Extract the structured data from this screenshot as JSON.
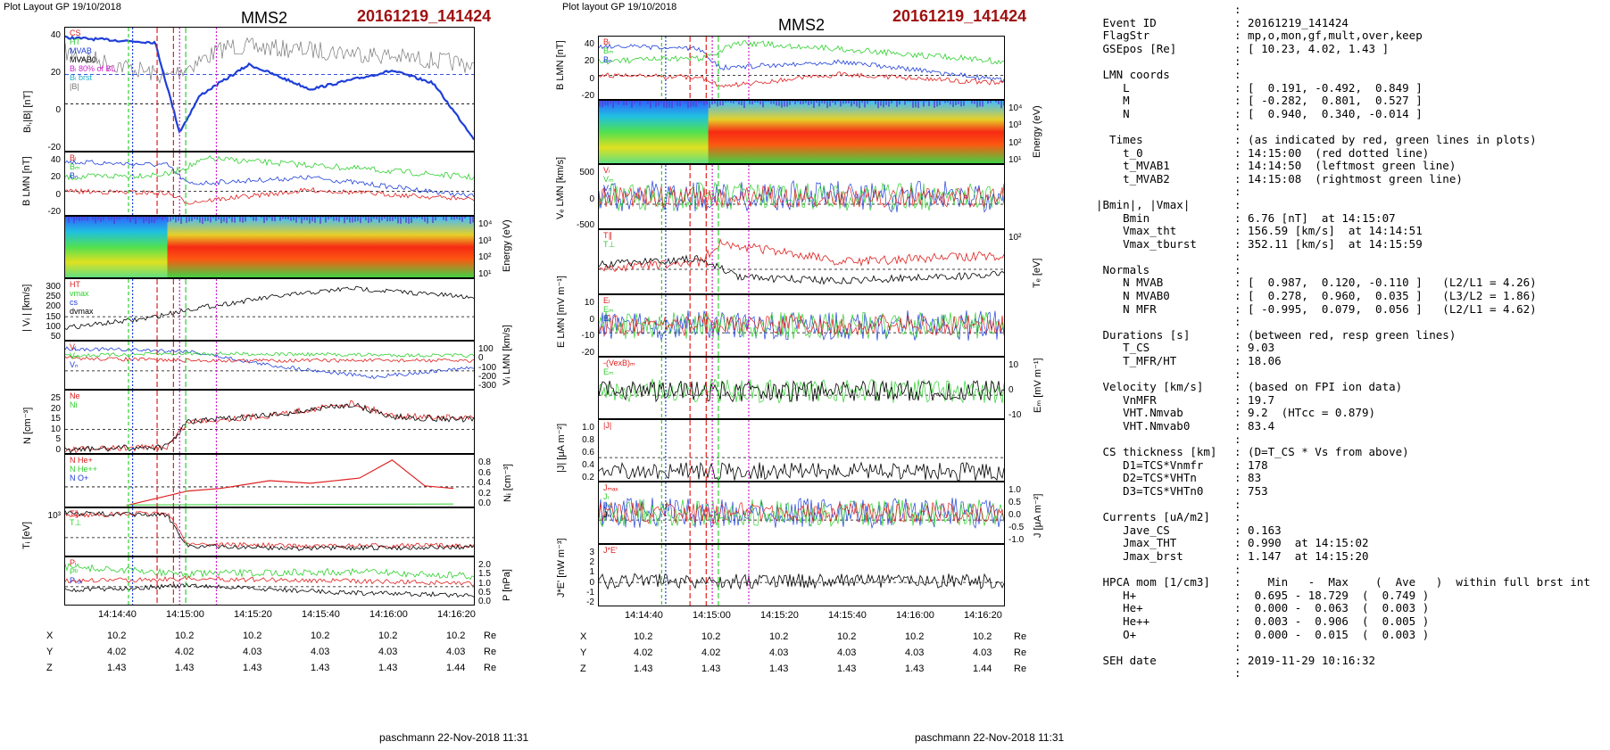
{
  "left": {
    "plot_label": "Plot Layout GP 19/10/2018",
    "spacecraft": "MMS2",
    "event": "20161219_141424",
    "footer": "paschmann 22-Nov-2018 11:31",
    "time_ticks": [
      "14:14:40",
      "14:15:00",
      "14:15:20",
      "14:15:40",
      "14:16:00",
      "14:16:20"
    ],
    "pos_rows": [
      {
        "label": "X",
        "values": [
          "10.2",
          "10.2",
          "10.2",
          "10.2",
          "10.2",
          "10.2"
        ],
        "unit": "Re"
      },
      {
        "label": "Y",
        "values": [
          "4.02",
          "4.02",
          "4.03",
          "4.03",
          "4.03",
          "4.03"
        ],
        "unit": "Re"
      },
      {
        "label": "Z",
        "values": [
          "1.43",
          "1.43",
          "1.43",
          "1.43",
          "1.43",
          "1.44"
        ],
        "unit": "Re"
      }
    ],
    "panels": [
      {
        "ylabel": "Bₗ,|B| [nT]",
        "yticks": [
          "40",
          "20",
          "0",
          "-20"
        ],
        "legend": [
          "CS",
          "HT",
          "MVAB",
          "MVAB0",
          "Bₗ 80% of BL",
          "Bₗ brst",
          "|B|"
        ]
      },
      {
        "ylabel": "B LMN [nT]",
        "yticks": [
          "40",
          "20",
          "0",
          "-20"
        ],
        "legend": [
          "Bₗ",
          "Bₘ",
          "Bₙ"
        ]
      },
      {
        "ylabel": "",
        "yticks_right": [
          "10⁴",
          "10³",
          "10²",
          "10¹"
        ],
        "ylabel_right": "Energy (eV)"
      },
      {
        "ylabel": "| Vᵢ | [km/s]",
        "yticks": [
          "300",
          "250",
          "200",
          "150",
          "100",
          "50"
        ],
        "legend": [
          "HT",
          "vmax",
          "cs",
          "dvmax"
        ]
      },
      {
        "ylabel": "",
        "yticks_right": [
          "100",
          "0",
          "-100",
          "-200",
          "-300"
        ],
        "ylabel_right": "Vᵢ LMN [km/s]",
        "legend": [
          "Vₗ",
          "Vₘ",
          "Vₙ"
        ]
      },
      {
        "ylabel": "N [cm⁻³]",
        "yticks": [
          "25",
          "20",
          "15",
          "10",
          "5",
          "0"
        ],
        "legend": [
          "Ne",
          "Ni"
        ]
      },
      {
        "ylabel": "",
        "yticks_right": [
          "0.8",
          "0.6",
          "0.4",
          "0.2",
          "0.0"
        ],
        "ylabel_right": "Nᵢ [cm⁻³]",
        "legend": [
          "N  He+",
          "N  He++",
          "N  O+"
        ]
      },
      {
        "ylabel": "Tᵢ [eV]",
        "yticks": [
          "10³"
        ],
        "legend": [
          "T∥",
          "T⊥"
        ]
      },
      {
        "ylabel": "",
        "yticks_right": [
          "2.0",
          "1.5",
          "1.0",
          "0.5",
          "0.0"
        ],
        "ylabel_right": "P [nPa]",
        "legend": [
          "Pᵢ",
          "Pᵇ",
          "Pₜₒₜ"
        ]
      }
    ]
  },
  "middle": {
    "plot_label": "Plot layout GP 19/10/2018",
    "spacecraft": "MMS2",
    "event": "20161219_141424",
    "footer": "paschmann 22-Nov-2018 11:31",
    "time_ticks": [
      "14:14:40",
      "14:15:00",
      "14:15:20",
      "14:15:40",
      "14:16:00",
      "14:16:20"
    ],
    "pos_rows": [
      {
        "label": "X",
        "values": [
          "10.2",
          "10.2",
          "10.2",
          "10.2",
          "10.2",
          "10.2"
        ],
        "unit": "Re"
      },
      {
        "label": "Y",
        "values": [
          "4.02",
          "4.02",
          "4.03",
          "4.03",
          "4.03",
          "4.03"
        ],
        "unit": "Re"
      },
      {
        "label": "Z",
        "values": [
          "1.43",
          "1.43",
          "1.43",
          "1.43",
          "1.43",
          "1.44"
        ],
        "unit": "Re"
      }
    ],
    "panels": [
      {
        "ylabel": "B LMN [nT]",
        "yticks": [
          "40",
          "20",
          "0",
          "-20"
        ],
        "legend": [
          "Bₗ",
          "Bₘ",
          "Bₙ"
        ]
      },
      {
        "ylabel": "",
        "yticks_right": [
          "10⁴",
          "10³",
          "10²",
          "10¹"
        ],
        "ylabel_right": "Energy (eV)"
      },
      {
        "ylabel": "Vₑ LMN [km/s]",
        "yticks": [
          "500",
          "0",
          "-500"
        ],
        "legend": [
          "Vₗ",
          "Vₘ",
          "Vₙ"
        ]
      },
      {
        "ylabel": "",
        "yticks_right": [
          "10²"
        ],
        "ylabel_right": "Tₑ [eV]",
        "legend": [
          "T∥",
          "T⊥"
        ]
      },
      {
        "ylabel": "E LMN [mV m⁻¹]",
        "yticks": [
          "10",
          "0",
          "-10",
          "-20"
        ],
        "legend": [
          "Eₗ",
          "Eₘ",
          "Eₙ"
        ]
      },
      {
        "ylabel": "",
        "yticks_right": [
          "10",
          "0",
          "-10"
        ],
        "ylabel_right": "Eₘ [mV m⁻¹]",
        "legend": [
          "-(VexB)ₘ",
          "Eₘ"
        ]
      },
      {
        "ylabel": "|J| [μA m⁻²]",
        "yticks": [
          "1.0",
          "0.8",
          "0.6",
          "0.4",
          "0.2"
        ],
        "legend": [
          "|J|"
        ]
      },
      {
        "ylabel": "",
        "yticks_right": [
          "1.0",
          "0.5",
          "0.0",
          "-0.5",
          "-1.0"
        ],
        "ylabel_right": "J [μA m⁻²]",
        "legend": [
          "Jₘₐₓ",
          "Jₗ",
          "Jₘ",
          "Jₙ"
        ]
      },
      {
        "ylabel": "J*E' [nW m⁻³]",
        "yticks": [
          "3",
          "2",
          "1",
          "0",
          "-1",
          "-2"
        ],
        "legend": [
          "J*E'"
        ]
      }
    ]
  },
  "info_rows": [
    {
      "k": "",
      "v": ":"
    },
    {
      "k": " Event ID",
      "v": ": 20161219_141424"
    },
    {
      "k": " FlagStr",
      "v": ": mp,o,mon,gf,mult,over,keep"
    },
    {
      "k": " GSEpos [Re]",
      "v": ": [ 10.23, 4.02, 1.43 ]"
    },
    {
      "k": "",
      "v": ":"
    },
    {
      "k": " LMN coords",
      "v": ":"
    },
    {
      "k": "    L",
      "v": ": [  0.191, -0.492,  0.849 ]"
    },
    {
      "k": "    M",
      "v": ": [ -0.282,  0.801,  0.527 ]"
    },
    {
      "k": "    N",
      "v": ": [  0.940,  0.340, -0.014 ]"
    },
    {
      "k": "",
      "v": ":"
    },
    {
      "k": "  Times",
      "v": ": (as indicated by red, green lines in plots)"
    },
    {
      "k": "    t_0",
      "v": ": 14:15:00  (red dotted line)"
    },
    {
      "k": "    t_MVAB1",
      "v": ": 14:14:50  (leftmost green line)"
    },
    {
      "k": "    t_MVAB2",
      "v": ": 14:15:08  (rightmost green line)"
    },
    {
      "k": "",
      "v": ":"
    },
    {
      "k": "|Bmin|, |Vmax|",
      "v": ":"
    },
    {
      "k": "    Bmin",
      "v": ": 6.76 [nT]  at 14:15:07"
    },
    {
      "k": "    Vmax_tht",
      "v": ": 156.59 [km/s]  at 14:14:51"
    },
    {
      "k": "    Vmax_tburst",
      "v": ": 352.11 [km/s]  at 14:15:59"
    },
    {
      "k": "",
      "v": ":"
    },
    {
      "k": " Normals",
      "v": ":"
    },
    {
      "k": "    N MVAB",
      "v": ": [  0.987,  0.120, -0.110 ]   (L2/L1 = 4.26)"
    },
    {
      "k": "    N MVAB0",
      "v": ": [  0.278,  0.960,  0.035 ]   (L3/L2 = 1.86)"
    },
    {
      "k": "    N MFR",
      "v": ": [ -0.995,  0.079,  0.056 ]   (L2/L1 = 4.62)"
    },
    {
      "k": "",
      "v": ":"
    },
    {
      "k": " Durations [s]",
      "v": ": (between red, resp green lines)"
    },
    {
      "k": "    T_CS",
      "v": ": 9.03"
    },
    {
      "k": "    T_MFR/HT",
      "v": ": 18.06"
    },
    {
      "k": "",
      "v": ":"
    },
    {
      "k": " Velocity [km/s]",
      "v": ": (based on FPI ion data)"
    },
    {
      "k": "    VnMFR",
      "v": ": 19.7"
    },
    {
      "k": "    VHT.Nmvab",
      "v": ": 9.2  (HTcc = 0.879)"
    },
    {
      "k": "    VHT.Nmvab0",
      "v": ": 83.4"
    },
    {
      "k": "",
      "v": ":"
    },
    {
      "k": " CS thickness [km]",
      "v": ": (D=T_CS * Vs from above)"
    },
    {
      "k": "    D1=TCS*Vnmfr",
      "v": ": 178"
    },
    {
      "k": "    D2=TCS*VHTn",
      "v": ": 83"
    },
    {
      "k": "    D3=TCS*VHTn0",
      "v": ": 753"
    },
    {
      "k": "",
      "v": ":"
    },
    {
      "k": " Currents [uA/m2]",
      "v": ":"
    },
    {
      "k": "    Jave_CS",
      "v": ": 0.163"
    },
    {
      "k": "    Jmax_THT",
      "v": ": 0.990  at 14:15:02"
    },
    {
      "k": "    Jmax_brst",
      "v": ": 1.147  at 14:15:20"
    },
    {
      "k": "",
      "v": ":"
    },
    {
      "k": " HPCA mom [1/cm3]",
      "v": ":    Min   -  Max    (  Ave   )  within full brst int"
    },
    {
      "k": "    H+",
      "v": ":  0.695 - 18.729  (  0.749 )"
    },
    {
      "k": "    He+",
      "v": ":  0.000 -  0.063  (  0.003 )"
    },
    {
      "k": "    He++",
      "v": ":  0.003 -  0.906  (  0.005 )"
    },
    {
      "k": "    O+",
      "v": ":  0.000 -  0.015  (  0.003 )"
    },
    {
      "k": "",
      "v": ":"
    },
    {
      "k": " SEH date",
      "v": ": 2019-11-29 10:16:32"
    },
    {
      "k": "",
      "v": ":"
    }
  ],
  "colors": {
    "blue": "#1f3fd8",
    "red": "#e02020",
    "green": "#30d030",
    "black": "#000000",
    "gray": "#777777",
    "magenta": "#d020d0",
    "cyan": "#20b0d0",
    "event": "#a01010"
  }
}
